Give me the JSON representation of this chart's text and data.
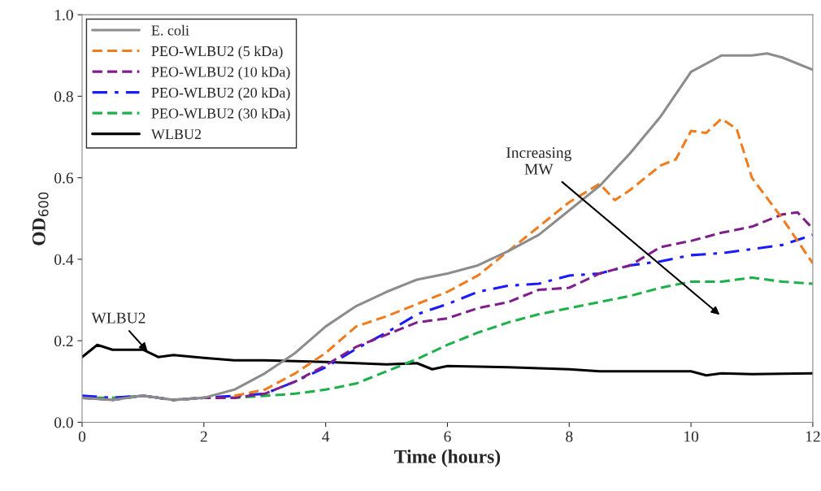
{
  "chart_data": {
    "type": "line",
    "xlabel": "Time (hours)",
    "ylabel": "OD$_{600}$",
    "xlim": [
      0,
      12
    ],
    "xticks": [
      0,
      2,
      4,
      6,
      8,
      10,
      12
    ],
    "ylim": [
      0,
      1.0
    ],
    "yticks": [
      {
        "value": 0,
        "label": "0.0"
      },
      {
        "value": 0.2,
        "label": "0.2"
      },
      {
        "value": 0.4,
        "label": "0.4"
      },
      {
        "value": 0.6,
        "label": "0.6"
      },
      {
        "value": 0.8,
        "label": "0.8"
      },
      {
        "value": 1.0,
        "label": "1.0"
      }
    ],
    "grid": false,
    "legend": "top left",
    "annotations": [
      {
        "text": "WLBU2",
        "x": 1.1,
        "y": 0.17
      },
      "Increasing\nMW"
    ],
    "series": [
      {
        "name": "E. coli",
        "color": "#8c8c8c",
        "line_style": "solid",
        "x": [
          0,
          0.5,
          1,
          1.5,
          2,
          2.5,
          3,
          3.5,
          4,
          4.5,
          5,
          5.5,
          6,
          6.5,
          7,
          7.5,
          8,
          8.5,
          9,
          9.5,
          10,
          10.5,
          11,
          11.25,
          11.5,
          12
        ],
        "values": [
          0.06,
          0.055,
          0.065,
          0.055,
          0.06,
          0.08,
          0.12,
          0.17,
          0.235,
          0.285,
          0.32,
          0.35,
          0.365,
          0.385,
          0.42,
          0.46,
          0.52,
          0.58,
          0.66,
          0.75,
          0.86,
          0.9,
          0.9,
          0.905,
          0.895,
          0.865
        ]
      },
      {
        "name": "PEO-WLBU2 (5 kDa)",
        "color": "#f07c1e",
        "line_style": "dashed",
        "x": [
          2.5,
          3,
          3.5,
          4,
          4.5,
          5,
          5.5,
          6,
          6.5,
          7,
          7.5,
          8,
          8.5,
          8.75,
          9,
          9.5,
          9.75,
          10,
          10.25,
          10.5,
          10.75,
          11,
          11.5,
          12
        ],
        "values": [
          0.065,
          0.08,
          0.12,
          0.17,
          0.235,
          0.26,
          0.29,
          0.32,
          0.36,
          0.42,
          0.48,
          0.54,
          0.585,
          0.545,
          0.57,
          0.63,
          0.645,
          0.715,
          0.71,
          0.745,
          0.72,
          0.6,
          0.5,
          0.39
        ]
      },
      {
        "name": "PEO-WLBU2 (10 kDa)",
        "color": "#7f1f8c",
        "line_style": "dashed",
        "x": [
          0,
          0.5,
          1,
          1.5,
          2,
          2.5,
          3,
          3.5,
          4,
          4.5,
          5,
          5.5,
          6,
          6.5,
          7,
          7.5,
          8,
          8.5,
          9,
          9.5,
          10,
          10.5,
          11,
          11.5,
          11.75,
          12
        ],
        "values": [
          0.06,
          0.055,
          0.065,
          0.055,
          0.06,
          0.06,
          0.07,
          0.1,
          0.14,
          0.185,
          0.215,
          0.245,
          0.255,
          0.28,
          0.295,
          0.325,
          0.33,
          0.365,
          0.385,
          0.43,
          0.445,
          0.465,
          0.48,
          0.51,
          0.515,
          0.475
        ]
      },
      {
        "name": "PEO-WLBU2 (20 kDa)",
        "color": "#1a1aff",
        "line_style": "dashdot",
        "x": [
          0,
          0.5,
          1,
          1.5,
          2,
          2.5,
          3,
          3.5,
          4,
          4.5,
          5,
          5.5,
          6,
          6.5,
          7,
          7.5,
          8,
          8.5,
          9,
          9.5,
          10,
          10.5,
          11,
          11.5,
          12
        ],
        "values": [
          0.065,
          0.06,
          0.065,
          0.055,
          0.06,
          0.065,
          0.07,
          0.1,
          0.135,
          0.18,
          0.22,
          0.265,
          0.29,
          0.32,
          0.335,
          0.34,
          0.36,
          0.365,
          0.385,
          0.395,
          0.41,
          0.415,
          0.425,
          0.435,
          0.46
        ]
      },
      {
        "name": "PEO-WLBU2 (30 kDa)",
        "color": "#1db04b",
        "line_style": "dashed",
        "x": [
          0,
          0.5,
          1,
          1.5,
          2,
          2.5,
          3,
          3.5,
          4,
          4.5,
          5,
          5.5,
          6,
          6.5,
          7,
          7.5,
          8,
          8.5,
          9,
          9.5,
          10,
          10.5,
          11,
          11.5,
          12
        ],
        "values": [
          0.06,
          0.06,
          0.065,
          0.055,
          0.06,
          0.06,
          0.065,
          0.07,
          0.08,
          0.095,
          0.125,
          0.155,
          0.19,
          0.22,
          0.245,
          0.265,
          0.28,
          0.295,
          0.31,
          0.33,
          0.345,
          0.345,
          0.355,
          0.345,
          0.34
        ]
      },
      {
        "name": "WLBU2",
        "color": "#000000",
        "line_style": "solid",
        "x": [
          0,
          0.25,
          0.5,
          1,
          1.25,
          1.5,
          2,
          2.5,
          3,
          3.5,
          4,
          4.5,
          5,
          5.5,
          5.75,
          6,
          7,
          8,
          8.5,
          9,
          10,
          10.25,
          10.5,
          11,
          12
        ],
        "values": [
          0.16,
          0.19,
          0.178,
          0.178,
          0.16,
          0.165,
          0.158,
          0.152,
          0.152,
          0.15,
          0.148,
          0.145,
          0.142,
          0.145,
          0.13,
          0.138,
          0.135,
          0.13,
          0.125,
          0.125,
          0.125,
          0.115,
          0.12,
          0.118,
          0.12
        ]
      }
    ]
  }
}
